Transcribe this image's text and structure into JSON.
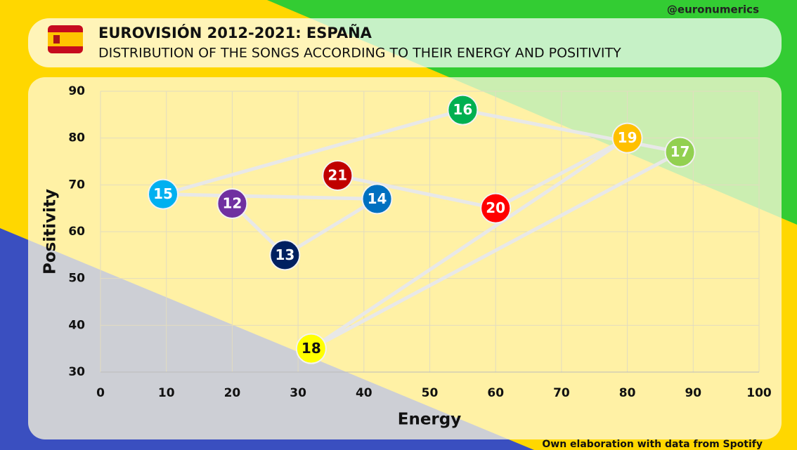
{
  "chart_data": {
    "type": "scatter",
    "handle": "@euronumerics",
    "title": "EUROVISIÓN 2012-2021: ESPAÑA",
    "subtitle": "DISTRIBUTION OF THE SONGS ACCORDING TO THEIR ENERGY AND POSITIVITY",
    "x_label": "Energy",
    "y_label": "Positivity",
    "source": "Own elaboration with data from Spotify",
    "labels": [
      "12",
      "13",
      "14",
      "15",
      "16",
      "17",
      "18",
      "19",
      "20",
      "21"
    ],
    "x": [
      20,
      28,
      42,
      9.5,
      55,
      88,
      32,
      80,
      60,
      36
    ],
    "values": [
      66,
      55,
      67,
      68,
      86,
      77,
      35,
      80,
      65,
      72
    ],
    "point_colors": [
      "#7030a0",
      "#002060",
      "#0070c0",
      "#00b0f0",
      "#00b050",
      "#92d050",
      "#ffff00",
      "#ffc000",
      "#ff0000",
      "#c00000"
    ],
    "line_color": "#e8e8e8",
    "xlim": [
      0,
      100
    ],
    "xticks": [
      0,
      10,
      20,
      30,
      40,
      50,
      60,
      70,
      80,
      90,
      100
    ],
    "ylim": [
      30,
      90
    ],
    "yticks": [
      30,
      40,
      50,
      60,
      70,
      80,
      90
    ],
    "grid": true
  }
}
